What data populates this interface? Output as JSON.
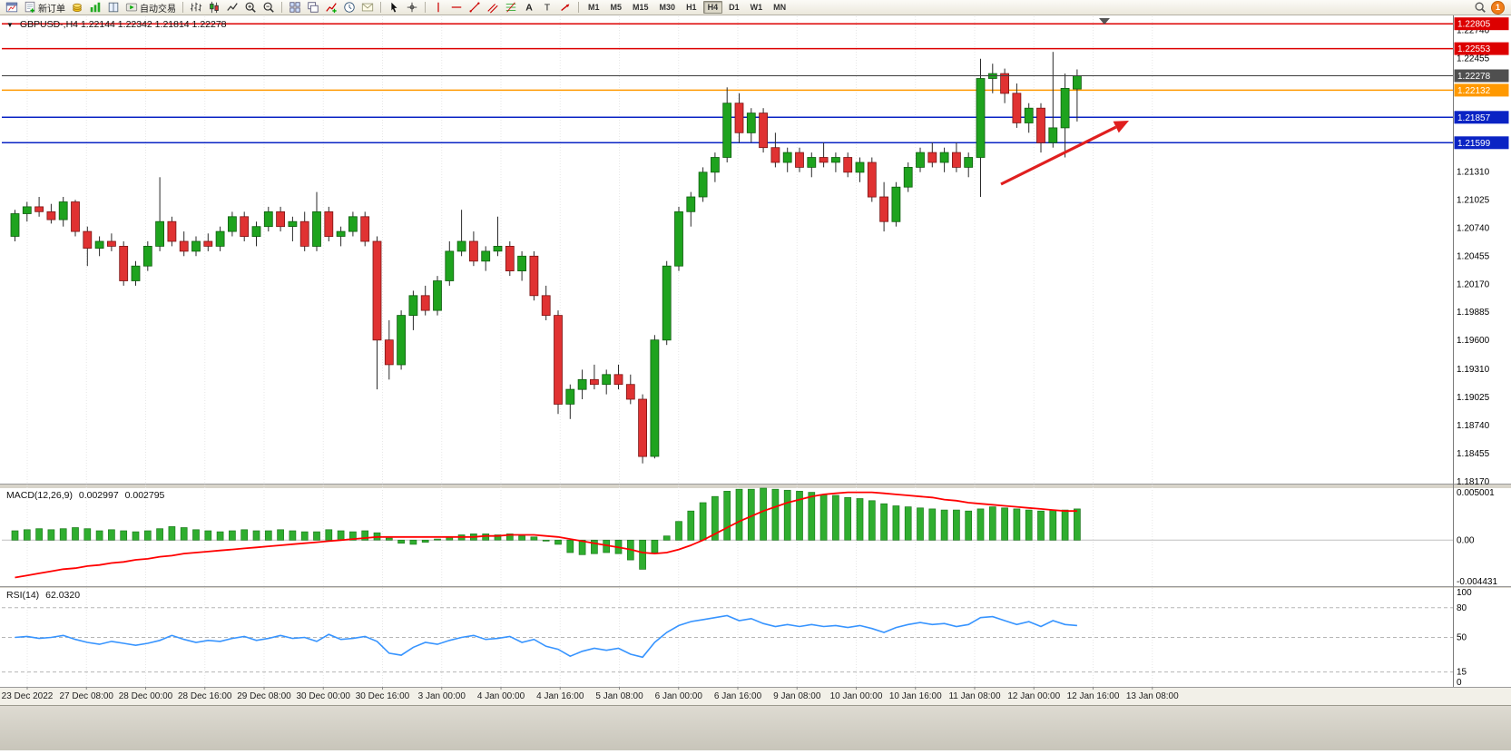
{
  "toolbar": {
    "buttons": [
      {
        "name": "new-chart",
        "icon": "window"
      },
      {
        "name": "new-order",
        "icon": "neworder",
        "label": "新订单"
      },
      {
        "name": "market-watch",
        "icon": "gold"
      },
      {
        "name": "chart-profiles",
        "icon": "chart-green"
      },
      {
        "name": "data-window",
        "icon": "book"
      },
      {
        "name": "auto-trading",
        "icon": "autotrade",
        "label": "自动交易"
      },
      {
        "sep": true
      },
      {
        "name": "bar-chart-mode",
        "icon": "bars"
      },
      {
        "name": "candlestick-mode",
        "icon": "candles"
      },
      {
        "name": "line-chart-mode",
        "icon": "linechart"
      },
      {
        "name": "zoom-in",
        "icon": "zoom-in"
      },
      {
        "name": "zoom-out",
        "icon": "zoom-out"
      },
      {
        "sep": true
      },
      {
        "name": "tile-windows",
        "icon": "tile"
      },
      {
        "name": "cascade-windows",
        "icon": "cascade"
      },
      {
        "name": "indicators",
        "icon": "indicator"
      },
      {
        "name": "period-clock",
        "icon": "clock"
      },
      {
        "name": "news",
        "icon": "mail"
      },
      {
        "sep": true
      },
      {
        "name": "cursor-tool",
        "icon": "cursor"
      },
      {
        "name": "crosshair-tool",
        "icon": "crosshair"
      },
      {
        "sep": true
      },
      {
        "name": "vertical-line-tool",
        "icon": "vline"
      },
      {
        "name": "horizontal-line-tool",
        "icon": "hline"
      },
      {
        "name": "trendline-tool",
        "icon": "trendline"
      },
      {
        "name": "channel-tool",
        "icon": "channel"
      },
      {
        "name": "fibonacci-tool",
        "icon": "fibo"
      },
      {
        "name": "text-tool",
        "icon": "text"
      },
      {
        "name": "label-tool",
        "icon": "label"
      },
      {
        "name": "arrows-tool",
        "icon": "arrowmark"
      },
      {
        "sep": true
      }
    ],
    "timeframes": [
      "M1",
      "M5",
      "M15",
      "M30",
      "H1",
      "H4",
      "D1",
      "W1",
      "MN"
    ],
    "active_timeframe": "H4",
    "notification_count": "1"
  },
  "main_panel": {
    "symbol_line": "GBPUSD-,H4 1.22144 1.22342 1.21814 1.22278"
  },
  "macd_panel": {
    "title": "MACD(12,26,9)",
    "value_main": "0.002997",
    "value_signal": "0.002795",
    "axis_labels": [
      {
        "v": 0.005001,
        "text": "0.005001"
      },
      {
        "v": 0,
        "text": "0.00"
      },
      {
        "v": -0.004431,
        "text": "-0.004431"
      }
    ]
  },
  "rsi_panel": {
    "title": "RSI(14)",
    "value": "62.0320",
    "axis_labels": [
      {
        "v": 100,
        "text": "100"
      },
      {
        "v": 80,
        "text": "80"
      },
      {
        "v": 50,
        "text": "50"
      },
      {
        "v": 15,
        "text": "15"
      },
      {
        "v": 0,
        "text": "0"
      }
    ],
    "levels": [
      80,
      50,
      15
    ]
  },
  "price_axis": {
    "plain_labels": [
      {
        "price": 1.2274,
        "text": "1.22740"
      },
      {
        "price": 1.22455,
        "text": "1.22455"
      },
      {
        "price": 1.2131,
        "text": "1.21310"
      },
      {
        "price": 1.21025,
        "text": "1.21025"
      },
      {
        "price": 1.2074,
        "text": "1.20740"
      },
      {
        "price": 1.20455,
        "text": "1.20455"
      },
      {
        "price": 1.2017,
        "text": "1.20170"
      },
      {
        "price": 1.19885,
        "text": "1.19885"
      },
      {
        "price": 1.196,
        "text": "1.19600"
      },
      {
        "price": 1.1931,
        "text": "1.19310"
      },
      {
        "price": 1.19025,
        "text": "1.19025"
      },
      {
        "price": 1.1874,
        "text": "1.18740"
      },
      {
        "price": 1.18455,
        "text": "1.18455"
      },
      {
        "price": 1.1817,
        "text": "1.18170"
      }
    ]
  },
  "levels": [
    {
      "price": 1.22805,
      "text": "1.22805",
      "color": "#dd0000"
    },
    {
      "price": 1.22553,
      "text": "1.22553",
      "color": "#dd0000"
    },
    {
      "price": 1.22132,
      "text": "1.22132",
      "color": "#ff9900"
    },
    {
      "price": 1.21857,
      "text": "1.21857",
      "color": "#0a23c4"
    },
    {
      "price": 1.21599,
      "text": "1.21599",
      "color": "#0a23c4"
    }
  ],
  "current_price": {
    "price": 1.22278,
    "text": "1.22278",
    "line_color": "#3c3c3c",
    "box_color": "#4f4f4f"
  },
  "annotations": {
    "trend_arrow": {
      "from": [
        1103,
        203
      ],
      "to": [
        1244,
        133
      ],
      "color": "#e01f1f"
    }
  },
  "time_axis": {
    "labels": [
      "23 Dec 2022",
      "27 Dec 08:00",
      "28 Dec 00:00",
      "28 Dec 16:00",
      "29 Dec 08:00",
      "30 Dec 00:00",
      "30 Dec 16:00",
      "3 Jan 00:00",
      "4 Jan 00:00",
      "4 Jan 16:00",
      "5 Jan 08:00",
      "6 Jan 00:00",
      "6 Jan 16:00",
      "9 Jan 08:00",
      "10 Jan 00:00",
      "10 Jan 16:00",
      "11 Jan 08:00",
      "12 Jan 00:00",
      "12 Jan 16:00",
      "13 Jan 08:00"
    ]
  },
  "chart_data": {
    "type": "candlestick",
    "symbol": "GBPUSD-",
    "timeframe": "H4",
    "last_candle": {
      "open": 1.22144,
      "high": 1.22342,
      "low": 1.21814,
      "close": 1.22278
    },
    "price_range": {
      "top": 1.2288,
      "bottom": 1.18145
    },
    "up_color": "#1ea31e",
    "down_color": "#e03232",
    "candles": [
      [
        1.2065,
        1.2092,
        1.206,
        1.2088
      ],
      [
        1.2088,
        1.21,
        1.208,
        1.2095
      ],
      [
        1.2095,
        1.2105,
        1.2085,
        1.209
      ],
      [
        1.209,
        1.2098,
        1.2078,
        1.2082
      ],
      [
        1.2082,
        1.2105,
        1.2075,
        1.21
      ],
      [
        1.21,
        1.2102,
        1.2065,
        1.207
      ],
      [
        1.207,
        1.2075,
        1.2035,
        1.2053
      ],
      [
        1.2053,
        1.2065,
        1.2045,
        1.206
      ],
      [
        1.206,
        1.2068,
        1.205,
        1.2055
      ],
      [
        1.2055,
        1.206,
        1.2015,
        1.202
      ],
      [
        1.202,
        1.204,
        1.2015,
        1.2035
      ],
      [
        1.2035,
        1.206,
        1.203,
        1.2055
      ],
      [
        1.2055,
        1.2125,
        1.205,
        1.208
      ],
      [
        1.208,
        1.2085,
        1.2055,
        1.206
      ],
      [
        1.206,
        1.207,
        1.2045,
        1.205
      ],
      [
        1.205,
        1.2065,
        1.2045,
        1.206
      ],
      [
        1.206,
        1.2068,
        1.205,
        1.2055
      ],
      [
        1.2055,
        1.2075,
        1.205,
        1.207
      ],
      [
        1.207,
        1.209,
        1.2065,
        1.2085
      ],
      [
        1.2085,
        1.209,
        1.206,
        1.2065
      ],
      [
        1.2065,
        1.208,
        1.2055,
        1.2075
      ],
      [
        1.2075,
        1.2095,
        1.207,
        1.209
      ],
      [
        1.209,
        1.2095,
        1.207,
        1.2075
      ],
      [
        1.2075,
        1.2085,
        1.206,
        1.208
      ],
      [
        1.208,
        1.209,
        1.205,
        1.2055
      ],
      [
        1.2055,
        1.211,
        1.205,
        1.209
      ],
      [
        1.209,
        1.2095,
        1.206,
        1.2065
      ],
      [
        1.2065,
        1.2075,
        1.2055,
        1.207
      ],
      [
        1.207,
        1.209,
        1.2065,
        1.2085
      ],
      [
        1.2085,
        1.209,
        1.2055,
        1.206
      ],
      [
        1.206,
        1.2065,
        1.191,
        1.196
      ],
      [
        1.196,
        1.198,
        1.192,
        1.1935
      ],
      [
        1.1935,
        1.199,
        1.193,
        1.1985
      ],
      [
        1.1985,
        1.201,
        1.197,
        1.2005
      ],
      [
        1.2005,
        1.2015,
        1.1985,
        1.199
      ],
      [
        1.199,
        1.2025,
        1.1985,
        1.202
      ],
      [
        1.202,
        1.206,
        1.2015,
        1.205
      ],
      [
        1.205,
        1.2092,
        1.2045,
        1.206
      ],
      [
        1.206,
        1.207,
        1.2035,
        1.204
      ],
      [
        1.204,
        1.2055,
        1.203,
        1.205
      ],
      [
        1.205,
        1.2085,
        1.2045,
        1.2055
      ],
      [
        1.2055,
        1.206,
        1.2025,
        1.203
      ],
      [
        1.203,
        1.205,
        1.202,
        1.2045
      ],
      [
        1.2045,
        1.205,
        1.2,
        1.2005
      ],
      [
        1.2005,
        1.2015,
        1.198,
        1.1985
      ],
      [
        1.1985,
        1.199,
        1.1885,
        1.1895
      ],
      [
        1.1895,
        1.1915,
        1.188,
        1.191
      ],
      [
        1.191,
        1.193,
        1.19,
        1.192
      ],
      [
        1.192,
        1.1935,
        1.191,
        1.1915
      ],
      [
        1.1915,
        1.193,
        1.1905,
        1.1925
      ],
      [
        1.1925,
        1.1935,
        1.191,
        1.1915
      ],
      [
        1.1915,
        1.1925,
        1.1895,
        1.19
      ],
      [
        1.19,
        1.1905,
        1.1835,
        1.1842
      ],
      [
        1.1842,
        1.1965,
        1.184,
        1.196
      ],
      [
        1.196,
        1.204,
        1.1955,
        1.2035
      ],
      [
        1.2035,
        1.2095,
        1.203,
        1.209
      ],
      [
        1.209,
        1.211,
        1.2075,
        1.2105
      ],
      [
        1.2105,
        1.2135,
        1.21,
        1.213
      ],
      [
        1.213,
        1.215,
        1.212,
        1.2145
      ],
      [
        1.2145,
        1.2216,
        1.214,
        1.22
      ],
      [
        1.22,
        1.221,
        1.216,
        1.217
      ],
      [
        1.217,
        1.2195,
        1.216,
        1.219
      ],
      [
        1.219,
        1.2195,
        1.215,
        1.2155
      ],
      [
        1.2155,
        1.217,
        1.2135,
        1.214
      ],
      [
        1.214,
        1.2155,
        1.213,
        1.215
      ],
      [
        1.215,
        1.2155,
        1.213,
        1.2135
      ],
      [
        1.2135,
        1.215,
        1.2125,
        1.2145
      ],
      [
        1.2145,
        1.216,
        1.2135,
        1.214
      ],
      [
        1.214,
        1.215,
        1.213,
        1.2145
      ],
      [
        1.2145,
        1.215,
        1.2125,
        1.213
      ],
      [
        1.213,
        1.2145,
        1.212,
        1.214
      ],
      [
        1.214,
        1.2145,
        1.21,
        1.2105
      ],
      [
        1.2105,
        1.212,
        1.207,
        1.208
      ],
      [
        1.208,
        1.212,
        1.2075,
        1.2115
      ],
      [
        1.2115,
        1.214,
        1.211,
        1.2135
      ],
      [
        1.2135,
        1.2155,
        1.213,
        1.215
      ],
      [
        1.215,
        1.216,
        1.2135,
        1.214
      ],
      [
        1.214,
        1.2155,
        1.213,
        1.215
      ],
      [
        1.215,
        1.216,
        1.213,
        1.2135
      ],
      [
        1.2135,
        1.215,
        1.2125,
        1.2145
      ],
      [
        1.2145,
        1.2245,
        1.2105,
        1.2225
      ],
      [
        1.2225,
        1.224,
        1.221,
        1.223
      ],
      [
        1.223,
        1.2235,
        1.22,
        1.221
      ],
      [
        1.221,
        1.222,
        1.2175,
        1.218
      ],
      [
        1.218,
        1.22,
        1.217,
        1.2195
      ],
      [
        1.2195,
        1.22,
        1.215,
        1.216
      ],
      [
        1.216,
        1.2252,
        1.2155,
        1.2175
      ],
      [
        1.2175,
        1.223,
        1.2145,
        1.2215
      ],
      [
        1.22144,
        1.22342,
        1.21814,
        1.22278
      ]
    ],
    "macd": {
      "params": "12,26,9",
      "current_main": 0.002997,
      "current_signal": 0.002795,
      "range": {
        "max": 0.005001,
        "min": -0.004431
      },
      "histogram_color": "#2fae2f",
      "signal_color": "#ff0000",
      "histogram": [
        0.0009,
        0.001,
        0.0011,
        0.001,
        0.0011,
        0.0012,
        0.0011,
        0.0009,
        0.001,
        0.0009,
        0.0008,
        0.0009,
        0.0011,
        0.0013,
        0.0012,
        0.001,
        0.0009,
        0.0008,
        0.0009,
        0.001,
        0.0009,
        0.0009,
        0.001,
        0.0009,
        0.0008,
        0.0008,
        0.001,
        0.0009,
        0.0008,
        0.0009,
        0.0007,
        0.0002,
        -0.0003,
        -0.0004,
        -0.0002,
        0.0001,
        0.0003,
        0.0005,
        0.0006,
        0.0006,
        0.0005,
        0.0006,
        0.0004,
        0.0003,
        0.0,
        -0.0004,
        -0.0012,
        -0.0014,
        -0.0013,
        -0.0012,
        -0.0013,
        -0.0019,
        -0.0028,
        -0.0012,
        0.0004,
        0.0018,
        0.0028,
        0.0036,
        0.0042,
        0.0047,
        0.0049,
        0.0049,
        0.005,
        0.0049,
        0.0048,
        0.0047,
        0.0046,
        0.0044,
        0.0043,
        0.0041,
        0.004,
        0.0038,
        0.0035,
        0.0033,
        0.0032,
        0.0031,
        0.003,
        0.0029,
        0.0029,
        0.0028,
        0.003,
        0.0032,
        0.0031,
        0.003,
        0.0029,
        0.0028,
        0.0029,
        0.0029,
        0.003
      ],
      "signal": [
        -0.0036,
        -0.0034,
        -0.0032,
        -0.003,
        -0.0028,
        -0.0027,
        -0.0025,
        -0.0024,
        -0.0022,
        -0.0021,
        -0.0019,
        -0.0018,
        -0.0016,
        -0.0015,
        -0.0013,
        -0.0012,
        -0.0011,
        -0.001,
        -0.0009,
        -0.0008,
        -0.0007,
        -0.0006,
        -0.0005,
        -0.0004,
        -0.0003,
        -0.0002,
        -0.0001,
        0.0,
        0.0001,
        0.0002,
        0.0003,
        0.0003,
        0.0003,
        0.0003,
        0.0003,
        0.0003,
        0.0003,
        0.0003,
        0.0003,
        0.0004,
        0.0004,
        0.0005,
        0.0005,
        0.0005,
        0.0004,
        0.0003,
        0.0001,
        -0.0001,
        -0.0003,
        -0.0005,
        -0.0007,
        -0.0009,
        -0.0012,
        -0.0013,
        -0.0012,
        -0.0009,
        -0.0005,
        0.0,
        0.0006,
        0.0012,
        0.0018,
        0.0023,
        0.0028,
        0.0032,
        0.0036,
        0.0039,
        0.0042,
        0.0044,
        0.0045,
        0.0046,
        0.0046,
        0.0046,
        0.0045,
        0.0044,
        0.0043,
        0.0042,
        0.0041,
        0.0039,
        0.0038,
        0.0036,
        0.0035,
        0.0034,
        0.0033,
        0.0032,
        0.0031,
        0.003,
        0.0029,
        0.0028,
        0.0028
      ]
    },
    "rsi": {
      "period": 14,
      "current": 62.032,
      "color": "#3794ff",
      "range": [
        0,
        100
      ],
      "values": [
        50,
        51,
        49,
        50,
        52,
        48,
        45,
        43,
        46,
        44,
        42,
        44,
        47,
        52,
        48,
        45,
        47,
        46,
        49,
        51,
        47,
        49,
        52,
        49,
        50,
        46,
        53,
        48,
        49,
        51,
        46,
        34,
        32,
        40,
        45,
        43,
        47,
        50,
        52,
        48,
        49,
        51,
        45,
        48,
        41,
        38,
        31,
        36,
        39,
        37,
        39,
        33,
        30,
        45,
        55,
        62,
        66,
        68,
        70,
        72,
        67,
        69,
        64,
        61,
        63,
        61,
        63,
        61,
        62,
        60,
        62,
        59,
        55,
        60,
        63,
        65,
        63,
        64,
        61,
        63,
        70,
        71,
        67,
        63,
        66,
        61,
        67,
        63,
        62.03
      ]
    }
  }
}
